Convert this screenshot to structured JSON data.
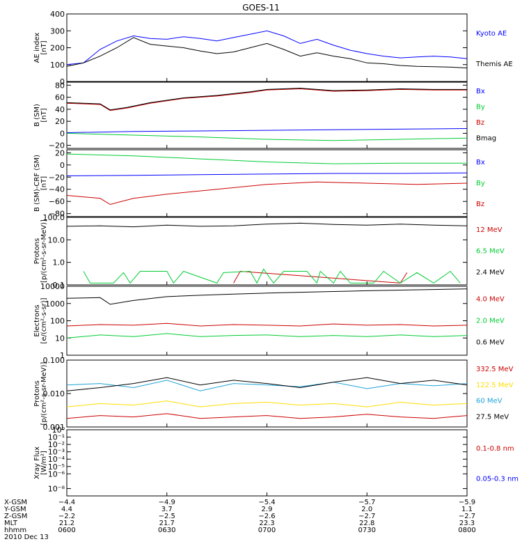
{
  "title": "GOES-11",
  "colors": {
    "black": "#000000",
    "blue": "#0000ff",
    "green": "#00cc33",
    "red": "#cc0000",
    "gold": "#ffdd00",
    "cyan": "#1fa3d9"
  },
  "chart_data": [
    {
      "type": "line",
      "panel": "ae",
      "ylabel": [
        "AE index",
        "[nT]"
      ],
      "scale": "linear",
      "ylim": [
        0,
        400
      ],
      "ticks": [
        {
          "v": 0,
          "label": "0"
        },
        {
          "v": 100,
          "label": "100"
        },
        {
          "v": 200,
          "label": "200"
        },
        {
          "v": 300,
          "label": "300"
        },
        {
          "v": 400,
          "label": "400"
        }
      ],
      "series": [
        {
          "name": "Kyoto AE",
          "color": "blue",
          "x": [
            0,
            5,
            10,
            15,
            20,
            25,
            30,
            35,
            40,
            45,
            50,
            55,
            60,
            65,
            70,
            75,
            80,
            85,
            90,
            95,
            100,
            105,
            110,
            115,
            120
          ],
          "values": [
            100,
            110,
            190,
            240,
            270,
            255,
            250,
            265,
            255,
            240,
            260,
            280,
            300,
            270,
            225,
            250,
            215,
            185,
            165,
            150,
            140,
            145,
            150,
            145,
            135
          ]
        },
        {
          "name": "Themis AE",
          "color": "black",
          "x": [
            0,
            5,
            10,
            15,
            20,
            25,
            30,
            35,
            40,
            45,
            50,
            55,
            60,
            65,
            70,
            75,
            80,
            85,
            90,
            95,
            100,
            105,
            110,
            115,
            120
          ],
          "values": [
            90,
            110,
            150,
            200,
            260,
            220,
            210,
            200,
            180,
            165,
            175,
            200,
            225,
            190,
            150,
            170,
            150,
            135,
            110,
            105,
            95,
            90,
            88,
            85,
            80
          ]
        }
      ]
    },
    {
      "type": "line",
      "panel": "bsm",
      "ylabel": [
        "B (SM)",
        "[nT]"
      ],
      "scale": "linear",
      "ylim": [
        -25,
        85
      ],
      "ticks": [
        {
          "v": -20,
          "label": "−20"
        },
        {
          "v": 0,
          "label": "0"
        },
        {
          "v": 20,
          "label": "20"
        },
        {
          "v": 40,
          "label": "40"
        },
        {
          "v": 60,
          "label": "60"
        },
        {
          "v": 80,
          "label": "80"
        }
      ],
      "series": [
        {
          "name": "Bx",
          "color": "blue",
          "x": [
            0,
            20,
            40,
            60,
            80,
            100,
            120
          ],
          "values": [
            1,
            3,
            4,
            5,
            6,
            7,
            8
          ]
        },
        {
          "name": "By",
          "color": "green",
          "x": [
            0,
            20,
            40,
            60,
            80,
            100,
            120
          ],
          "values": [
            0,
            -3,
            -6,
            -10,
            -12,
            -10,
            -8
          ]
        },
        {
          "name": "Bz",
          "color": "red",
          "x": [
            0,
            10,
            13,
            18,
            25,
            35,
            45,
            55,
            60,
            70,
            80,
            90,
            100,
            110,
            120
          ],
          "values": [
            50,
            48,
            38,
            42,
            50,
            58,
            62,
            68,
            72,
            74,
            70,
            71,
            73,
            72,
            72
          ]
        },
        {
          "name": "Bmag",
          "color": "black",
          "x": [
            0,
            10,
            13,
            18,
            25,
            35,
            45,
            55,
            60,
            70,
            80,
            90,
            100,
            110,
            120
          ],
          "values": [
            51,
            49,
            39,
            43,
            51,
            59,
            63,
            69,
            73,
            75,
            71,
            72,
            74,
            73,
            73
          ]
        }
      ]
    },
    {
      "type": "line",
      "panel": "bdiff",
      "ylabel": [
        "B (SM)-CRF (SM)",
        "[nT]"
      ],
      "scale": "linear",
      "ylim": [
        -85,
        25
      ],
      "ticks": [
        {
          "v": -80,
          "label": "−80"
        },
        {
          "v": -60,
          "label": "−60"
        },
        {
          "v": -40,
          "label": "−40"
        },
        {
          "v": -20,
          "label": "−20"
        },
        {
          "v": 0,
          "label": "0"
        },
        {
          "v": 20,
          "label": "20"
        }
      ],
      "series": [
        {
          "name": "Bx",
          "color": "blue",
          "x": [
            0,
            20,
            40,
            60,
            80,
            100,
            120
          ],
          "values": [
            -18,
            -17,
            -16,
            -15,
            -14,
            -14,
            -13
          ]
        },
        {
          "name": "By",
          "color": "green",
          "x": [
            0,
            20,
            40,
            60,
            80,
            100,
            120
          ],
          "values": [
            18,
            15,
            10,
            5,
            2,
            3,
            3
          ]
        },
        {
          "name": "Bz",
          "color": "red",
          "x": [
            0,
            10,
            13,
            20,
            30,
            45,
            60,
            75,
            90,
            105,
            120
          ],
          "values": [
            -50,
            -55,
            -65,
            -55,
            -48,
            -40,
            -32,
            -28,
            -30,
            -32,
            -30
          ]
        }
      ]
    },
    {
      "type": "line",
      "panel": "protons_lo",
      "ylabel": [
        "Protons",
        "[p/(cm²-s-sr-MeV)]"
      ],
      "scale": "log",
      "ylim": [
        0.1,
        100
      ],
      "ticks": [
        {
          "v": 0.1,
          "label": "0.1"
        },
        {
          "v": 1,
          "label": "1.0"
        },
        {
          "v": 10,
          "label": "10.0"
        },
        {
          "v": 100,
          "label": "100.0"
        }
      ],
      "series": [
        {
          "name": "12 MeV",
          "color": "red",
          "x": [
            50,
            52,
            100,
            102
          ],
          "values": [
            0.12,
            0.4,
            0.12,
            0.35
          ]
        },
        {
          "name": "6.5 MeV",
          "color": "green",
          "x": [
            5,
            7,
            9,
            14,
            17,
            19,
            22,
            30,
            32,
            35,
            45,
            47,
            55,
            57,
            59,
            62,
            65,
            72,
            75,
            76,
            80,
            82,
            85,
            92,
            95,
            100,
            105,
            110,
            115,
            118
          ],
          "values": [
            0.4,
            0.12,
            0.12,
            0.12,
            0.35,
            0.12,
            0.4,
            0.4,
            0.12,
            0.4,
            0.12,
            0.35,
            0.4,
            0.12,
            0.5,
            0.12,
            0.4,
            0.4,
            0.12,
            0.4,
            0.12,
            0.4,
            0.12,
            0.12,
            0.4,
            0.12,
            0.35,
            0.12,
            0.4,
            0.12
          ]
        },
        {
          "name": "2.4 MeV",
          "color": "black",
          "x": [
            0,
            10,
            20,
            30,
            40,
            50,
            60,
            70,
            80,
            90,
            100,
            110,
            120
          ],
          "values": [
            40,
            42,
            38,
            45,
            40,
            42,
            50,
            55,
            48,
            45,
            50,
            45,
            42
          ]
        }
      ]
    },
    {
      "type": "line",
      "panel": "electrons",
      "ylabel": [
        "Electrons",
        "[e/(cm²-s-sr)]"
      ],
      "scale": "log",
      "ylim": [
        1,
        10000
      ],
      "ticks": [
        {
          "v": 1,
          "label": "1"
        },
        {
          "v": 10,
          "label": "10"
        },
        {
          "v": 100,
          "label": "100"
        },
        {
          "v": 1000,
          "label": "1000"
        },
        {
          "v": 10000,
          "label": "10000"
        }
      ],
      "series": [
        {
          "name": "4.0 MeV",
          "color": "red",
          "x": [
            0,
            10,
            20,
            30,
            40,
            50,
            60,
            70,
            80,
            90,
            100,
            110,
            120
          ],
          "values": [
            50,
            60,
            55,
            70,
            50,
            60,
            55,
            50,
            65,
            55,
            60,
            50,
            55
          ]
        },
        {
          "name": "2.0 MeV",
          "color": "green",
          "x": [
            0,
            10,
            20,
            30,
            40,
            50,
            60,
            70,
            80,
            90,
            100,
            110,
            120
          ],
          "values": [
            10,
            15,
            12,
            18,
            12,
            14,
            15,
            12,
            14,
            12,
            15,
            12,
            14
          ]
        },
        {
          "name": "0.6 MeV",
          "color": "black",
          "x": [
            0,
            10,
            13,
            20,
            30,
            40,
            50,
            60,
            70,
            80,
            90,
            100,
            110,
            120
          ],
          "values": [
            2000,
            2200,
            900,
            1500,
            2500,
            3000,
            3500,
            4000,
            4500,
            5000,
            5500,
            6000,
            6500,
            7000
          ]
        }
      ]
    },
    {
      "type": "line",
      "panel": "protons_hi",
      "ylabel": [
        "Protons",
        "[p/(cm²-s-sr-MeV)]"
      ],
      "scale": "log",
      "ylim": [
        0.001,
        0.1
      ],
      "ticks": [
        {
          "v": 0.001,
          "label": "0.001"
        },
        {
          "v": 0.01,
          "label": "0.010"
        },
        {
          "v": 0.1,
          "label": "0.100"
        }
      ],
      "series": [
        {
          "name": "332.5 MeV",
          "color": "red",
          "x": [
            0,
            10,
            20,
            30,
            40,
            50,
            60,
            70,
            80,
            90,
            100,
            110,
            120
          ],
          "values": [
            0.0018,
            0.0022,
            0.002,
            0.0025,
            0.0018,
            0.002,
            0.0022,
            0.0018,
            0.002,
            0.0024,
            0.002,
            0.0018,
            0.0022
          ]
        },
        {
          "name": "122.5 MeV",
          "color": "gold",
          "x": [
            0,
            10,
            20,
            30,
            40,
            50,
            60,
            70,
            80,
            90,
            100,
            110,
            120
          ],
          "values": [
            0.004,
            0.005,
            0.0045,
            0.006,
            0.004,
            0.005,
            0.0055,
            0.0045,
            0.005,
            0.004,
            0.0055,
            0.0045,
            0.005
          ]
        },
        {
          "name": "60 MeV",
          "color": "cyan",
          "x": [
            0,
            10,
            20,
            30,
            40,
            50,
            60,
            70,
            80,
            90,
            100,
            110,
            120
          ],
          "values": [
            0.018,
            0.02,
            0.015,
            0.025,
            0.012,
            0.02,
            0.018,
            0.016,
            0.022,
            0.014,
            0.02,
            0.017,
            0.02
          ]
        },
        {
          "name": "27.5 MeV",
          "color": "black",
          "x": [
            0,
            10,
            20,
            30,
            40,
            50,
            60,
            70,
            80,
            90,
            100,
            110,
            120
          ],
          "values": [
            0.012,
            0.015,
            0.02,
            0.03,
            0.018,
            0.025,
            0.02,
            0.015,
            0.022,
            0.03,
            0.02,
            0.025,
            0.018
          ]
        }
      ]
    },
    {
      "type": "line",
      "panel": "xray",
      "ylabel": [
        "Xray Flux",
        "[W/m²]"
      ],
      "scale": "log",
      "ylim": [
        1e-09,
        1
      ],
      "ticks": [
        {
          "v": 1e-08,
          "label": "10⁻⁸"
        },
        {
          "v": 1e-06,
          "label": "10⁻⁶"
        },
        {
          "v": 1e-05,
          "label": "10⁻⁵"
        },
        {
          "v": 0.0001,
          "label": "10⁻⁴"
        },
        {
          "v": 0.001,
          "label": "10⁻³"
        },
        {
          "v": 0.01,
          "label": "10⁻²"
        },
        {
          "v": 0.1,
          "label": "10⁻¹"
        },
        {
          "v": 1,
          "label": "10⁰"
        }
      ],
      "series": [
        {
          "name": "0.1-0.8 nm",
          "color": "red",
          "x": [],
          "values": []
        },
        {
          "name": "0.05-0.3 nm",
          "color": "blue",
          "x": [],
          "values": []
        }
      ]
    }
  ],
  "xaxis": {
    "row_labels": [
      "X-GSM",
      "Y-GSM",
      "Z-GSM",
      "MLT",
      "hhmm",
      "2010 Dec 13"
    ],
    "ticks": [
      {
        "x": 0,
        "vals": [
          "−4.4",
          "4.4",
          "−2.2",
          "21.2",
          "0600"
        ]
      },
      {
        "x": 30,
        "vals": [
          "−4.9",
          "3.7",
          "−2.5",
          "21.7",
          "0630"
        ]
      },
      {
        "x": 60,
        "vals": [
          "−5.4",
          "2.9",
          "−2.6",
          "22.3",
          "0700"
        ]
      },
      {
        "x": 90,
        "vals": [
          "−5.7",
          "2.0",
          "−2.7",
          "22.8",
          "0730"
        ]
      },
      {
        "x": 120,
        "vals": [
          "−5.9",
          "1.1",
          "−2.7",
          "23.3",
          "0800"
        ]
      }
    ]
  }
}
